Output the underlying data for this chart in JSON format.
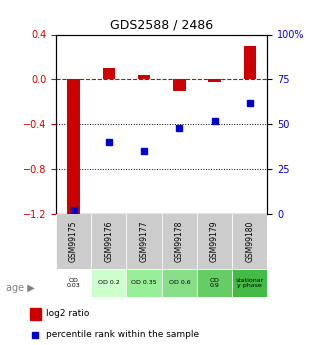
{
  "title": "GDS2588 / 2486",
  "samples": [
    "GSM99175",
    "GSM99176",
    "GSM99177",
    "GSM99178",
    "GSM99179",
    "GSM99180"
  ],
  "log2_ratio": [
    -1.2,
    0.1,
    0.04,
    -0.1,
    -0.02,
    0.3
  ],
  "percentile_rank": [
    2,
    40,
    35,
    48,
    52,
    62
  ],
  "bar_color": "#cc0000",
  "dot_color": "#0000cc",
  "ylim_left": [
    -1.2,
    0.4
  ],
  "ylim_right": [
    0,
    100
  ],
  "yticks_left": [
    -1.2,
    -0.8,
    -0.4,
    0.0,
    0.4
  ],
  "yticks_right": [
    0,
    25,
    50,
    75,
    100
  ],
  "ytick_labels_right": [
    "0",
    "25",
    "50",
    "75",
    "100%"
  ],
  "hline_y": 0.0,
  "dotted_lines": [
    -0.4,
    -0.8
  ],
  "age_labels": [
    "OD\n0.03",
    "OD 0.2",
    "OD 0.35",
    "OD 0.6",
    "OD\n0.9",
    "stationar\ny phase"
  ],
  "age_bg_colors": [
    "#ffffff",
    "#ccffcc",
    "#99ee99",
    "#88dd88",
    "#66cc66",
    "#44bb44"
  ],
  "gsm_bg_color": "#cccccc",
  "legend_items": [
    {
      "label": "log2 ratio",
      "color": "#cc0000",
      "marker": "s"
    },
    {
      "label": "percentile rank within the sample",
      "color": "#0000cc",
      "marker": "s"
    }
  ]
}
